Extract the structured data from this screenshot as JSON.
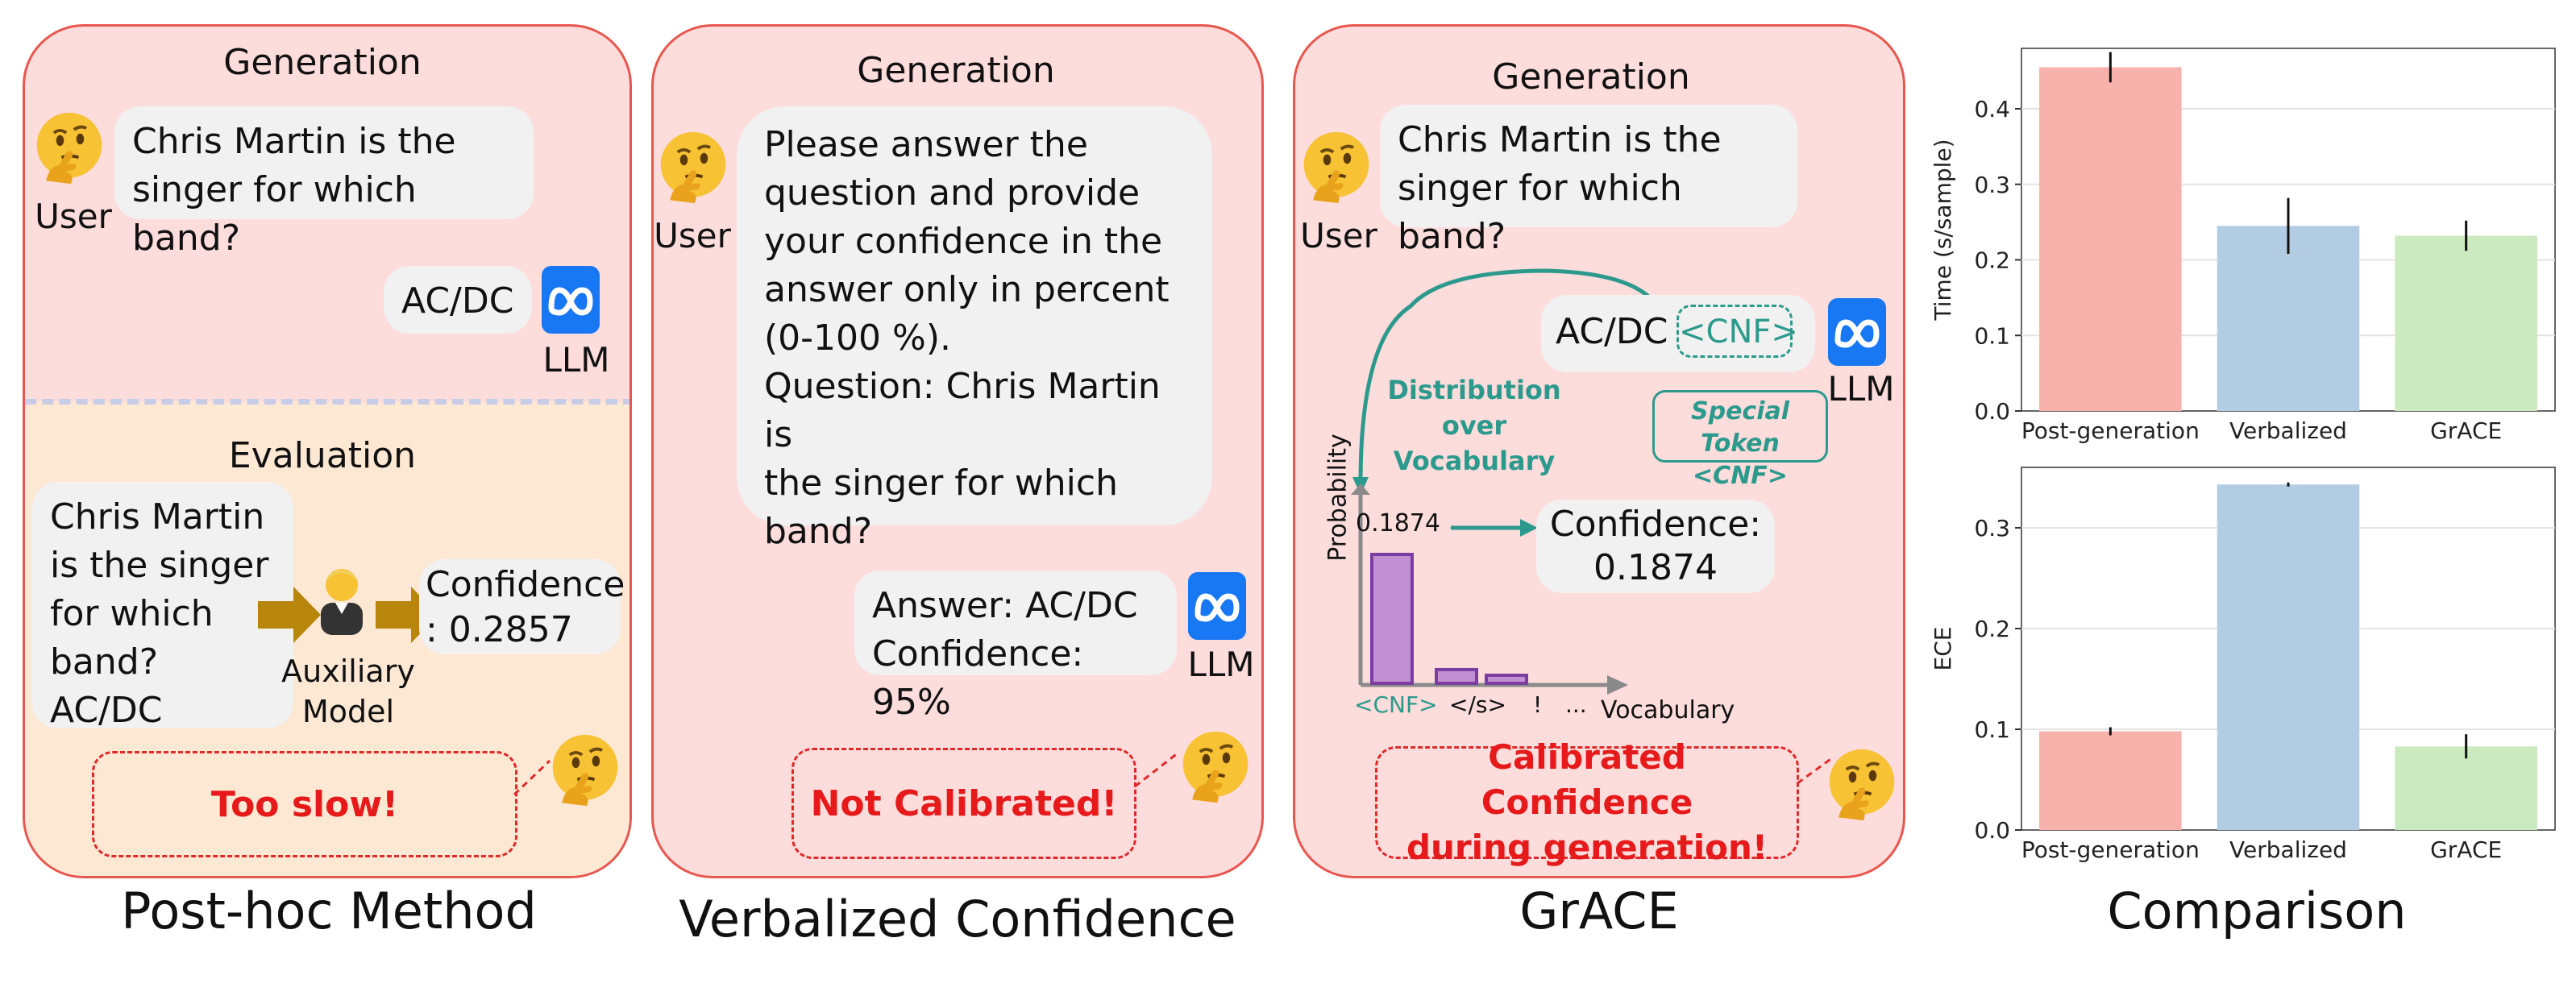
{
  "panel1": {
    "generation_title": "Generation",
    "question": "Chris Martin is the\nsinger for which band?",
    "user_label": "User",
    "answer": "AC/DC",
    "llm_label": "LLM",
    "evaluation_title": "Evaluation",
    "eval_text": "Chris Martin\nis the singer\nfor which\nband?\nAC/DC",
    "aux_label": "Auxiliary\nModel",
    "confidence": "Confidence\n: 0.2857",
    "verdict": "Too slow!",
    "caption": "Post-hoc Method"
  },
  "panel2": {
    "generation_title": "Generation",
    "question": "Please answer the\nquestion and provide\nyour confidence in the\nanswer only in percent\n(0-100 %).\nQuestion: Chris Martin is\nthe singer for which\nband?",
    "user_label": "User",
    "answer": "Answer: AC/DC\nConfidence: 95%",
    "llm_label": "LLM",
    "verdict": "Not Calibrated!",
    "caption": "Verbalized Confidence"
  },
  "panel3": {
    "generation_title": "Generation",
    "question": "Chris Martin is the\nsinger for which band?",
    "user_label": "User",
    "answer": "AC/DC",
    "cnf_token": "<CNF>",
    "llm_label": "LLM",
    "distribution_label": "Distribution\nover Vocabulary",
    "special_token_label": "Special Token\n<CNF>",
    "prob_axis": "Probability",
    "vocab_axis": "Vocabulary",
    "prob_value": "0.1874",
    "confidence": "Confidence:\n0.1874",
    "bar_labels": [
      "<CNF>",
      "</s>",
      "!",
      "..."
    ],
    "bar_values": [
      0.1874,
      0.02,
      0.01
    ],
    "verdict": "Calibrated Confidence\nduring generation!",
    "caption": "GrACE"
  },
  "comparison_caption": "Comparison",
  "colors": {
    "panel_pink": "#fddcdc",
    "panel_eval": "#fde8d4",
    "border_red": "#e8574f",
    "teal": "#2b9a8c",
    "purple": "#8a4fb0",
    "bar_red": "#f8b2ac",
    "bar_blue": "#b2cde3",
    "bar_green": "#cbeac0"
  },
  "chart_data": [
    {
      "type": "bar",
      "categories": [
        "Post-generation",
        "Verbalized",
        "GrACE"
      ],
      "values": [
        0.455,
        0.245,
        0.232
      ],
      "errors": [
        0.02,
        0.037,
        0.02
      ],
      "ylabel": "Time (s/sample)",
      "ylim": [
        0,
        0.48
      ],
      "yticks": [
        0.0,
        0.1,
        0.2,
        0.3,
        0.4
      ],
      "grid": true
    },
    {
      "type": "bar",
      "categories": [
        "Post-generation",
        "Verbalized",
        "GrACE"
      ],
      "values": [
        0.098,
        0.343,
        0.083
      ],
      "errors": [
        0.004,
        0.002,
        0.012
      ],
      "ylabel": "ECE",
      "ylim": [
        0,
        0.36
      ],
      "yticks": [
        0.0,
        0.1,
        0.2,
        0.3
      ],
      "grid": true
    }
  ]
}
